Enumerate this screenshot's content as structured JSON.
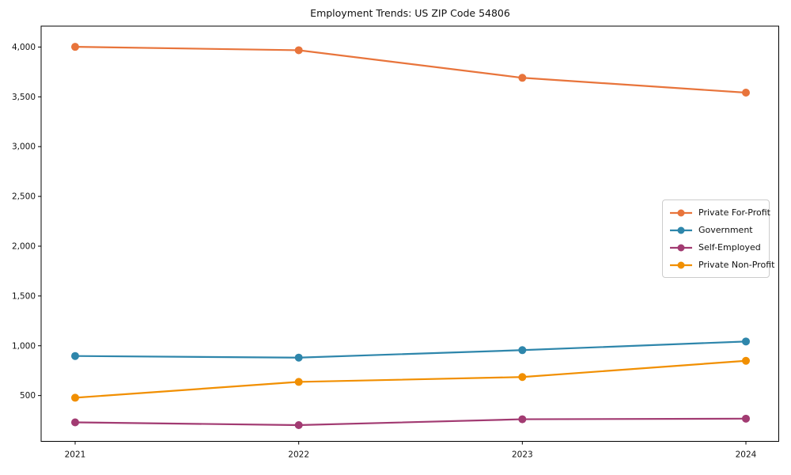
{
  "figure": {
    "title": "Employment Trends: US ZIP Code 54806"
  },
  "chart_data": {
    "type": "line",
    "title": "Employment Trends: US ZIP Code 54806",
    "categories": [
      "2021",
      "2022",
      "2023",
      "2024"
    ],
    "series": [
      {
        "name": "Private For-Profit",
        "color": "#E8743B",
        "values": [
          4002,
          3968,
          3691,
          3542
        ]
      },
      {
        "name": "Government",
        "color": "#2E86AB",
        "values": [
          897,
          881,
          956,
          1043
        ]
      },
      {
        "name": "Self-Employed",
        "color": "#A23B72",
        "values": [
          231,
          203,
          262,
          268
        ]
      },
      {
        "name": "Private Non-Profit",
        "color": "#F18F01",
        "values": [
          478,
          637,
          686,
          849
        ]
      }
    ],
    "xlabel": "",
    "ylabel": "",
    "yticks": [
      500,
      1000,
      1500,
      2000,
      2500,
      3000,
      3500,
      4000
    ],
    "ytick_labels": [
      "500",
      "1,000",
      "1,500",
      "2,000",
      "2,500",
      "3,000",
      "3,500",
      "4,000"
    ],
    "ylim": [
      40,
      4210
    ],
    "grid": false,
    "marker": "o",
    "legend_position": "center right",
    "frame_color": "#000000",
    "text_color": "#111111"
  }
}
